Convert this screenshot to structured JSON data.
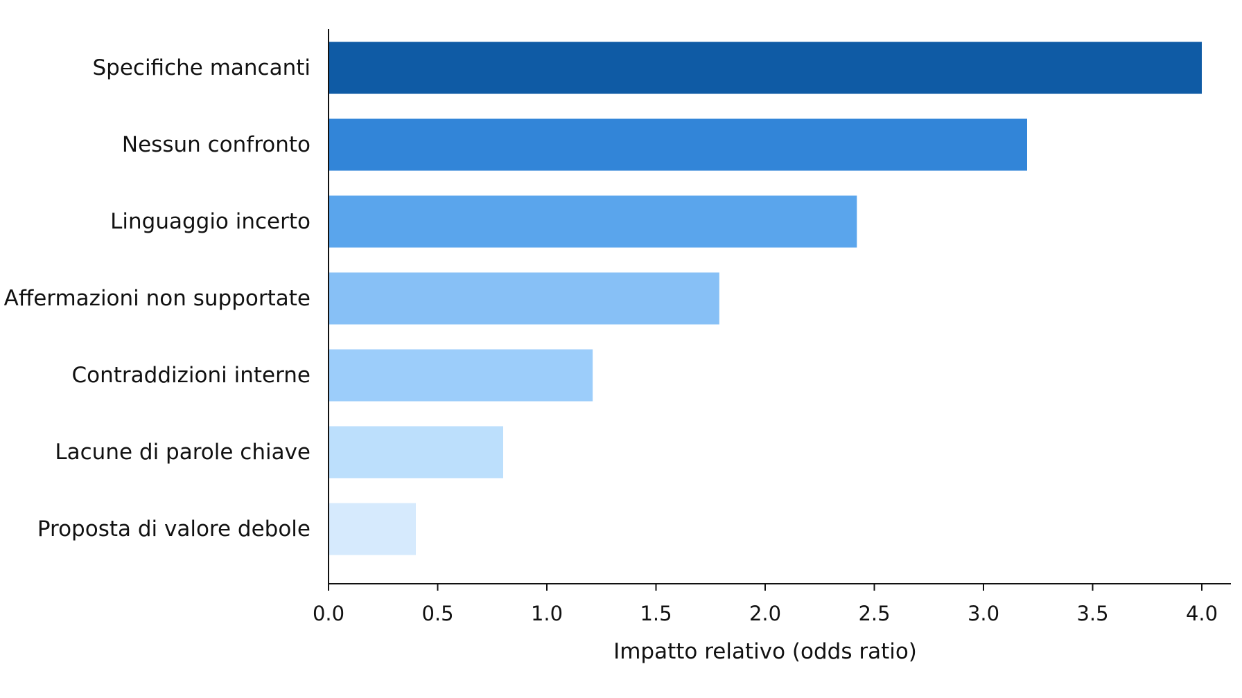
{
  "chart_data": {
    "type": "bar",
    "orientation": "horizontal",
    "title": "",
    "xlabel": "Impatto relativo (odds ratio)",
    "ylabel": "",
    "xlim": [
      0,
      4.1
    ],
    "xticks": [
      0.0,
      0.5,
      1.0,
      1.5,
      2.0,
      2.5,
      3.0,
      3.5,
      4.0
    ],
    "tick_labels": [
      "0.0",
      "0.5",
      "1.0",
      "1.5",
      "2.0",
      "2.5",
      "3.0",
      "3.5",
      "4.0"
    ],
    "grid": false,
    "legend": "none",
    "categories": [
      "Specifiche mancanti",
      "Nessun confronto",
      "Linguaggio incerto",
      "Affermazioni non supportate",
      "Contraddizioni interne",
      "Lacune di parole chiave",
      "Proposta di valore debole"
    ],
    "values": [
      4.0,
      3.2,
      2.42,
      1.79,
      1.21,
      0.8,
      0.4
    ],
    "colors": [
      "#0f5ba5",
      "#3285d8",
      "#5aa5ec",
      "#87c0f6",
      "#9ccdfa",
      "#bcdffc",
      "#d6eafd"
    ]
  }
}
